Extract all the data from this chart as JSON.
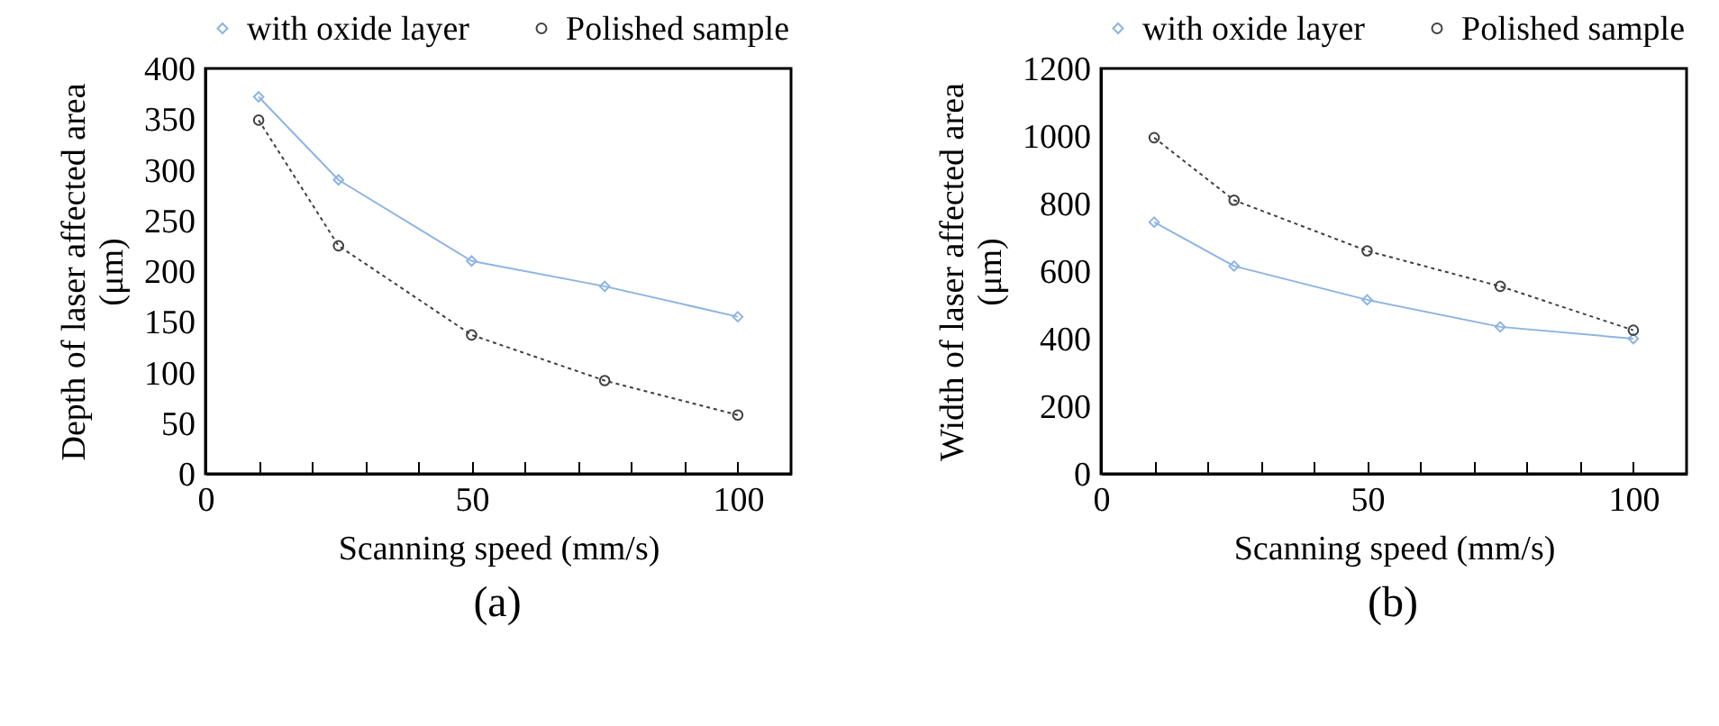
{
  "chart_data": [
    {
      "type": "line",
      "xlabel": "Scanning speed (mm/s)",
      "ylabel": "Depth of laser affected area (μm)",
      "annotations": [
        "(a)"
      ],
      "x": [
        10,
        25,
        50,
        75,
        100
      ],
      "xlim": [
        0,
        110
      ],
      "ylim": [
        0,
        400
      ],
      "xticks": [
        0,
        {
          "value": 10,
          "label": null
        },
        {
          "value": 20,
          "label": null
        },
        {
          "value": 30,
          "label": null
        },
        {
          "value": 40,
          "label": null
        },
        50,
        {
          "value": 60,
          "label": null
        },
        {
          "value": 70,
          "label": null
        },
        {
          "value": 80,
          "label": null
        },
        {
          "value": 90,
          "label": null
        },
        100
      ],
      "yticks": [
        0,
        50,
        100,
        150,
        200,
        250,
        300,
        350,
        400
      ],
      "grid": false,
      "legend": "top",
      "series": [
        {
          "name": "with oxide layer",
          "color": "#8db4e2",
          "marker": "diamond",
          "line_style": "solid",
          "values": [
            372,
            290,
            210,
            185,
            155
          ]
        },
        {
          "name": "Polished sample",
          "color": "#404040",
          "marker": "circle",
          "line_style": "dotted",
          "values": [
            349,
            225,
            137,
            92,
            58
          ]
        }
      ]
    },
    {
      "type": "line",
      "xlabel": "Scanning speed (mm/s)",
      "ylabel": "Width of laser affected area (μm)",
      "annotations": [
        "(b)"
      ],
      "x": [
        10,
        25,
        50,
        75,
        100
      ],
      "xlim": [
        0,
        110
      ],
      "ylim": [
        0,
        1200
      ],
      "xticks": [
        0,
        {
          "value": 10,
          "label": null
        },
        {
          "value": 20,
          "label": null
        },
        {
          "value": 30,
          "label": null
        },
        {
          "value": 40,
          "label": null
        },
        50,
        {
          "value": 60,
          "label": null
        },
        {
          "value": 70,
          "label": null
        },
        {
          "value": 80,
          "label": null
        },
        {
          "value": 90,
          "label": null
        },
        100
      ],
      "yticks": [
        0,
        200,
        400,
        600,
        800,
        1000,
        1200
      ],
      "grid": false,
      "legend": "top",
      "series": [
        {
          "name": "with oxide layer",
          "color": "#8db4e2",
          "marker": "diamond",
          "line_style": "solid",
          "values": [
            745,
            615,
            515,
            435,
            400
          ]
        },
        {
          "name": "Polished sample",
          "color": "#404040",
          "marker": "circle",
          "line_style": "dotted",
          "values": [
            995,
            810,
            660,
            555,
            425
          ]
        }
      ]
    }
  ]
}
